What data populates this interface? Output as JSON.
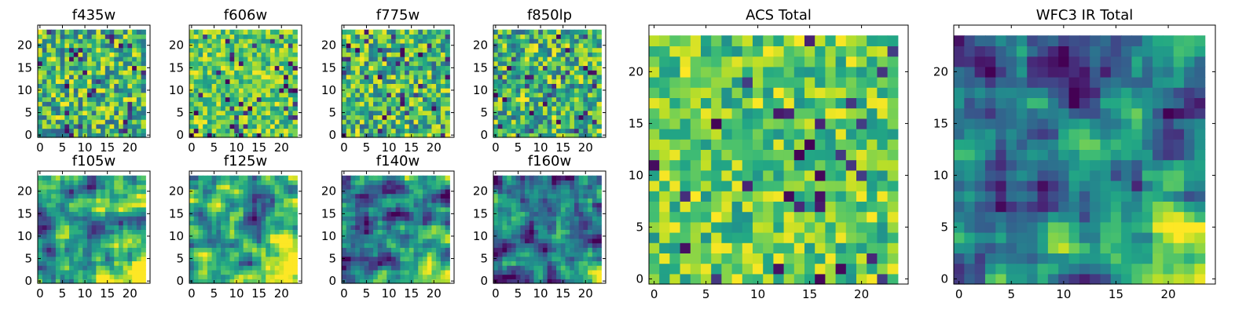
{
  "chart_data": [
    {
      "type": "heatmap",
      "title": "f435w",
      "xlim": [
        0,
        24
      ],
      "ylim": [
        0,
        24
      ],
      "xticks": [
        "0",
        "5",
        "10",
        "15",
        "20"
      ],
      "yticks": [
        "0",
        "5",
        "10",
        "15",
        "20"
      ],
      "colormap": "viridis",
      "pattern": "noise"
    },
    {
      "type": "heatmap",
      "title": "f606w",
      "xlim": [
        0,
        24
      ],
      "ylim": [
        0,
        24
      ],
      "xticks": [
        "0",
        "5",
        "10",
        "15",
        "20"
      ],
      "yticks": [
        "0",
        "5",
        "10",
        "15",
        "20"
      ],
      "colormap": "viridis",
      "pattern": "noise_bright"
    },
    {
      "type": "heatmap",
      "title": "f775w",
      "xlim": [
        0,
        24
      ],
      "ylim": [
        0,
        24
      ],
      "xticks": [
        "0",
        "5",
        "10",
        "15",
        "20"
      ],
      "yticks": [
        "0",
        "5",
        "10",
        "15",
        "20"
      ],
      "colormap": "viridis",
      "pattern": "noise"
    },
    {
      "type": "heatmap",
      "title": "f850lp",
      "xlim": [
        0,
        24
      ],
      "ylim": [
        0,
        24
      ],
      "xticks": [
        "0",
        "5",
        "10",
        "15",
        "20"
      ],
      "yticks": [
        "0",
        "5",
        "10",
        "15",
        "20"
      ],
      "colormap": "viridis",
      "pattern": "noise"
    },
    {
      "type": "heatmap",
      "title": "f105w",
      "xlim": [
        0,
        24
      ],
      "ylim": [
        0,
        24
      ],
      "xticks": [
        "0",
        "5",
        "10",
        "15",
        "20"
      ],
      "yticks": [
        "0",
        "5",
        "10",
        "15",
        "20"
      ],
      "colormap": "viridis",
      "pattern": "smooth_mid"
    },
    {
      "type": "heatmap",
      "title": "f125w",
      "xlim": [
        0,
        24
      ],
      "ylim": [
        0,
        24
      ],
      "xticks": [
        "0",
        "5",
        "10",
        "15",
        "20"
      ],
      "yticks": [
        "0",
        "5",
        "10",
        "15",
        "20"
      ],
      "colormap": "viridis",
      "pattern": "smooth_mid"
    },
    {
      "type": "heatmap",
      "title": "f140w",
      "xlim": [
        0,
        24
      ],
      "ylim": [
        0,
        24
      ],
      "xticks": [
        "0",
        "5",
        "10",
        "15",
        "20"
      ],
      "yticks": [
        "0",
        "5",
        "10",
        "15",
        "20"
      ],
      "colormap": "viridis",
      "pattern": "smooth_dark"
    },
    {
      "type": "heatmap",
      "title": "f160w",
      "xlim": [
        0,
        24
      ],
      "ylim": [
        0,
        24
      ],
      "xticks": [
        "0",
        "5",
        "10",
        "15",
        "20"
      ],
      "yticks": [
        "0",
        "5",
        "10",
        "15",
        "20"
      ],
      "colormap": "viridis",
      "pattern": "smooth_dark"
    },
    {
      "type": "heatmap",
      "title": "ACS Total",
      "xlim": [
        0,
        24
      ],
      "ylim": [
        0,
        24
      ],
      "xticks": [
        "0",
        "5",
        "10",
        "15",
        "20"
      ],
      "yticks": [
        "0",
        "5",
        "10",
        "15",
        "20"
      ],
      "colormap": "viridis",
      "pattern": "noise_bright"
    },
    {
      "type": "heatmap",
      "title": "WFC3 IR Total",
      "xlim": [
        0,
        24
      ],
      "ylim": [
        0,
        24
      ],
      "xticks": [
        "0",
        "5",
        "10",
        "15",
        "20"
      ],
      "yticks": [
        "0",
        "5",
        "10",
        "15",
        "20"
      ],
      "colormap": "viridis",
      "pattern": "smooth_dark"
    }
  ]
}
